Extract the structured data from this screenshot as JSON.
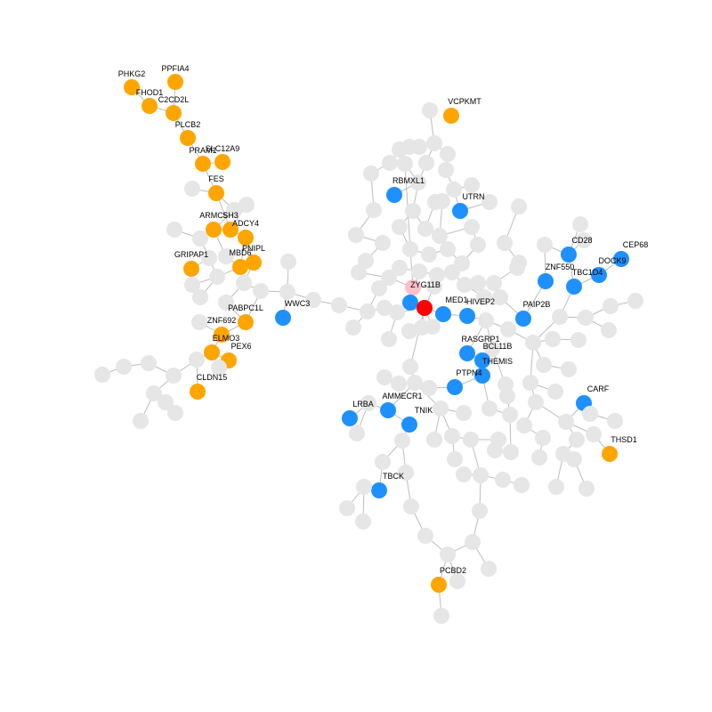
{
  "colors": {
    "orange": "#FFA500",
    "blue": "#1E90FF",
    "gray": "#E6E6E6",
    "red": "#FF0000",
    "pink": "#FFC0CB",
    "edge": "#BDBDBD"
  },
  "labels": {
    "PHKG2": "PHKG2",
    "PPFIA4": "PPFIA4",
    "FHOD1": "FHOD1",
    "C2CD2L": "C2CD2L",
    "PLCB2": "PLCB2",
    "PRAM1": "PRAM1",
    "SLC12A9": "SLC12A9",
    "FES": "FES",
    "ARMC5": "ARMC5",
    "SH3": "SH3",
    "ADCY4": "ADCY4",
    "PNIPL": "PNIPL",
    "GRIPAP1": "GRIPAP1",
    "MBD6": "MBD6",
    "PABPC1L": "PABPC1L",
    "ZNF692": "ZNF692",
    "ELMO3": "ELMO3",
    "PEX6": "PEX6",
    "CLDN15": "CLDN15",
    "WWC3": "WWC3",
    "VCPKMT": "VCPKMT",
    "RBMXL1": "RBMXL1",
    "UTRN": "UTRN",
    "ZYG11B": "ZYG11B",
    "MED1": "MED1",
    "HIVEP2": "HIVEP2",
    "CD28": "CD28",
    "CEP68": "CEP68",
    "DOCK9": "DOCK9",
    "ZNF550": "ZNF550",
    "TBC1D4": "TBC1D4",
    "PAIP2B": "PAIP2B",
    "RASGRP1": "RASGRP1",
    "BCL11B": "BCL11B",
    "THEMIS": "THEMIS",
    "PTPN4": "PTPN4",
    "AMMECR1": "AMMECR1",
    "LRBA": "LRBA",
    "TNIK": "TNIK",
    "CARF": "CARF",
    "THSD1": "THSD1",
    "TBCK": "TBCK",
    "PCBD2": "PCBD2"
  }
}
